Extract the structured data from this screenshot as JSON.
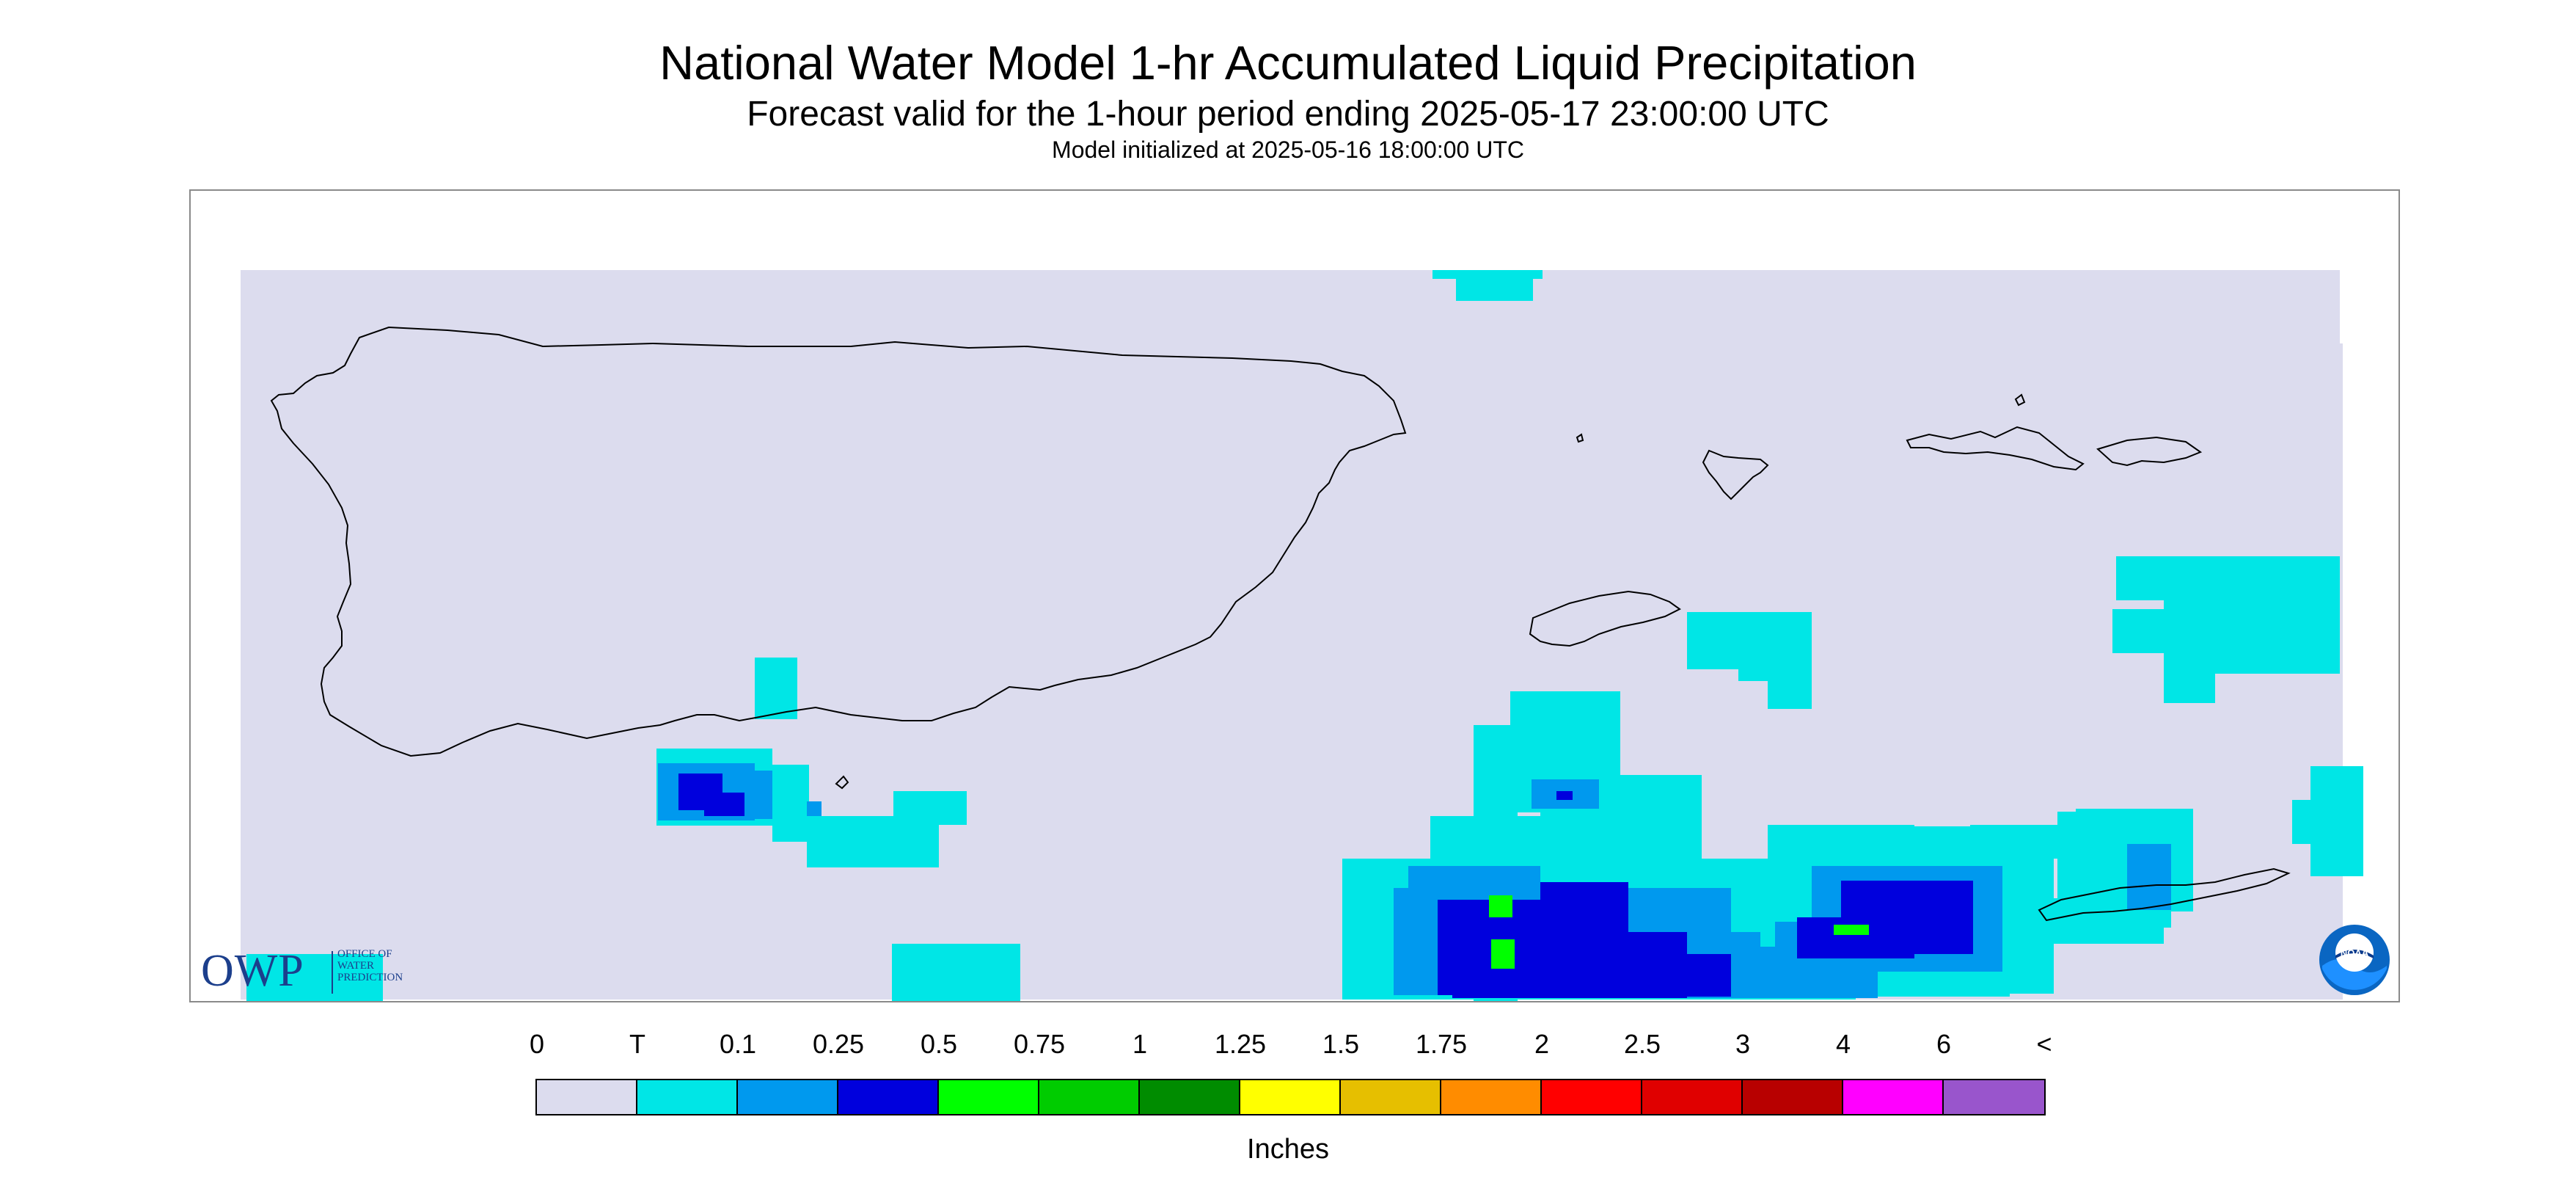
{
  "header": {
    "title": "National Water Model 1-hr Accumulated Liquid Precipitation",
    "subtitle": "Forecast valid for the 1-hour period ending 2025-05-17 23:00:00 UTC",
    "initialized": "Model initialized at 2025-05-16 18:00:00 UTC"
  },
  "map": {
    "background_color": "#dcdcee",
    "coastline_color": "#000000",
    "regions": [
      "Puerto Rico",
      "Vieques",
      "Culebra",
      "St. Thomas / St. John",
      "St. Croix"
    ]
  },
  "logos": {
    "owp_main": "OWP",
    "owp_lines": [
      "OFFICE OF",
      "WATER",
      "PREDICTION"
    ],
    "noaa": "NOAA"
  },
  "legend": {
    "labels": [
      "0",
      "T",
      "0.1",
      "0.25",
      "0.5",
      "0.75",
      "1",
      "1.25",
      "1.5",
      "1.75",
      "2",
      "2.5",
      "3",
      "4",
      "6",
      "<"
    ],
    "colors": [
      "#dcdcee",
      "#00e6e6",
      "#0099ee",
      "#0000dd",
      "#00ff00",
      "#00cc00",
      "#008c00",
      "#ffff00",
      "#e6bf00",
      "#ff8c00",
      "#ff0000",
      "#e00000",
      "#b80000",
      "#ff00ff",
      "#9955cc"
    ],
    "units": "Inches"
  }
}
